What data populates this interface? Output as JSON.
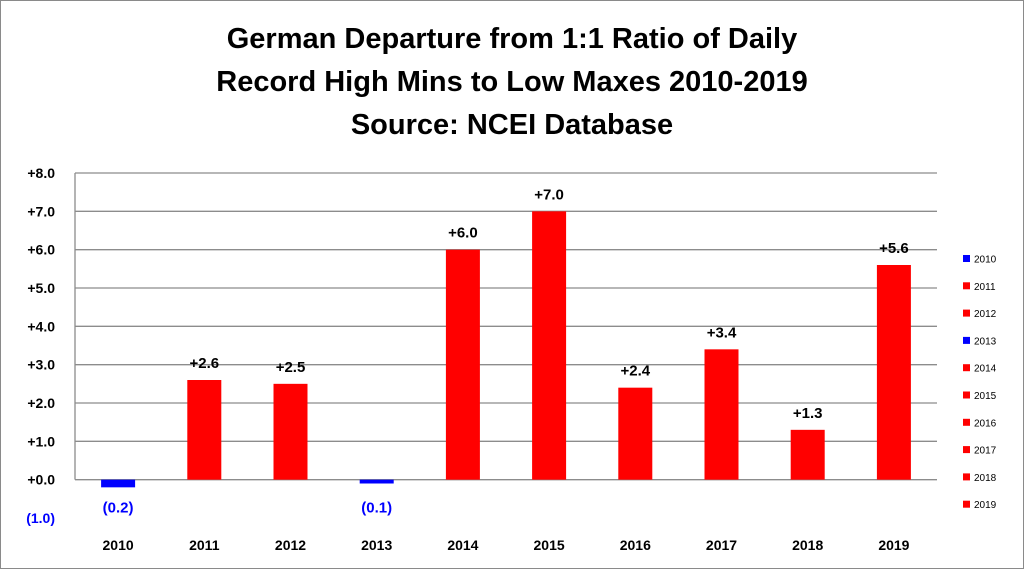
{
  "chart_data": {
    "type": "bar",
    "title_lines": [
      "German Departure from 1:1 Ratio of Daily",
      "Record High Mins to Low Maxes 2010-2019",
      "Source: NCEI Database"
    ],
    "categories": [
      "2010",
      "2011",
      "2012",
      "2013",
      "2014",
      "2015",
      "2016",
      "2017",
      "2018",
      "2019"
    ],
    "values": [
      -0.2,
      2.6,
      2.5,
      -0.1,
      6.0,
      7.0,
      2.4,
      3.4,
      1.3,
      5.6
    ],
    "data_labels": [
      "(0.2)",
      "+2.6",
      "+2.5",
      "(0.1)",
      "+6.0",
      "+7.0",
      "+2.4",
      "+3.4",
      "+1.3",
      "+5.6"
    ],
    "y_ticks": [
      -1.0,
      0.0,
      1.0,
      2.0,
      3.0,
      4.0,
      5.0,
      6.0,
      7.0,
      8.0
    ],
    "y_tick_labels": [
      "(1.0)",
      "+0.0",
      "+1.0",
      "+2.0",
      "+3.0",
      "+4.0",
      "+5.0",
      "+6.0",
      "+7.0",
      "+8.0"
    ],
    "ylim": [
      -1.0,
      8.0
    ],
    "grid": true,
    "legend": {
      "placement": "right",
      "entries": [
        "2010",
        "2011",
        "2012",
        "2013",
        "2014",
        "2015",
        "2016",
        "2017",
        "2018",
        "2019"
      ]
    },
    "colors": {
      "positive": "#ff0000",
      "negative": "#0000ff",
      "grid": "#8c8c8c",
      "negative_label": "#0000ff",
      "positive_label": "#000000"
    },
    "xlabel": "",
    "ylabel": ""
  }
}
